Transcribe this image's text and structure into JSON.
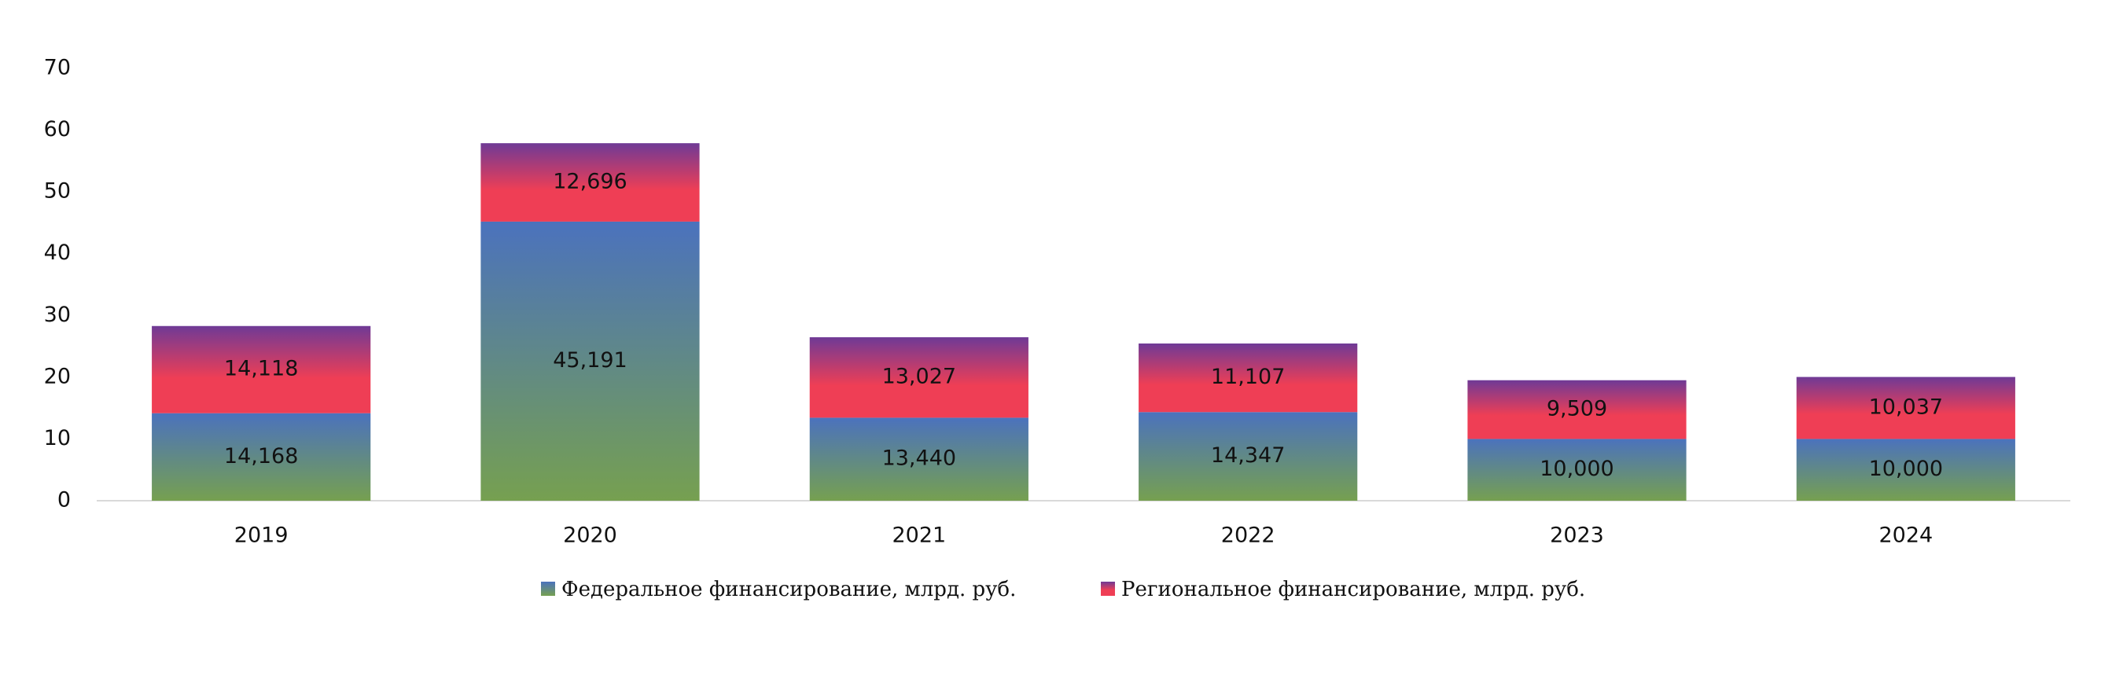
{
  "chart_data": {
    "type": "stacked_bar",
    "categories": [
      "2019",
      "2020",
      "2021",
      "2022",
      "2023",
      "2024"
    ],
    "series": [
      {
        "name": "Федеральное финансирование, млрд. руб.",
        "color": "#4b72bd",
        "gradient_to": "#76a050",
        "values": [
          14.168,
          45.191,
          13.44,
          14.347,
          10,
          10
        ],
        "value_labels": [
          "14,168",
          "45,191",
          "13,440",
          "14,347",
          "10,000",
          "10,000"
        ]
      },
      {
        "name": "Региональное финансирование, млрд. руб.",
        "color": "#6f3a96",
        "gradient_to": "#ef3e55",
        "values": [
          14.118,
          12.696,
          13.027,
          11.107,
          9.509,
          10.037
        ],
        "value_labels": [
          "14,118",
          "12,696",
          "13,027",
          "11,107",
          "9,509",
          "10,037"
        ]
      }
    ],
    "ylim": [
      0,
      70
    ],
    "yticks": [
      0,
      10,
      20,
      30,
      40,
      50,
      60,
      70
    ],
    "grid": false,
    "legend": "bottom"
  }
}
